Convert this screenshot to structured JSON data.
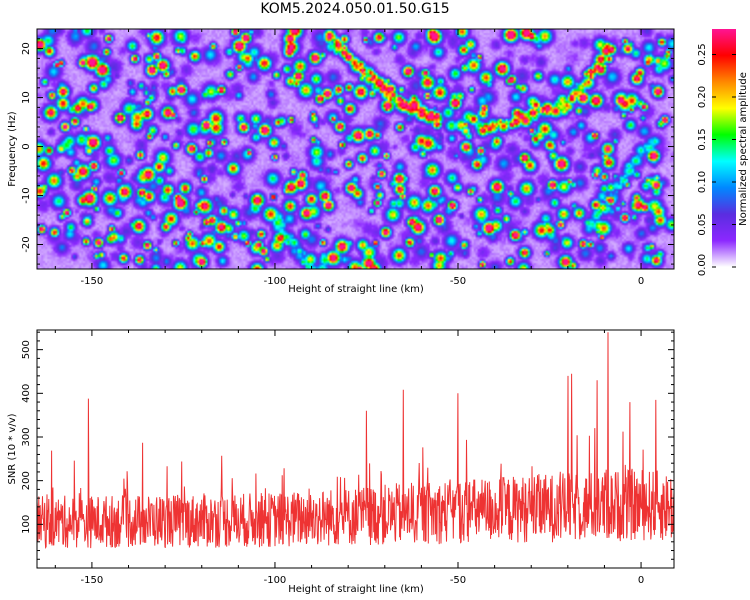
{
  "title": "KOM5.2024.050.01.50.G15",
  "chart_data": [
    {
      "type": "heatmap",
      "xlabel": "Height of straight line (km)",
      "ylabel": "Frequency (Hz)",
      "xlim": [
        -165,
        9
      ],
      "ylim": [
        -25,
        24
      ],
      "xticks": [
        -150,
        -100,
        -50,
        0
      ],
      "yticks": [
        -20,
        -10,
        0,
        10,
        20
      ],
      "colorbar": {
        "label": "Normalized spectral amplitude",
        "range": [
          0,
          0.28
        ],
        "ticks": [
          "0.00",
          "0.05",
          "0.10",
          "0.15",
          "0.20",
          "0.25"
        ],
        "colors": [
          "#ffffff",
          "#8c28ff",
          "#5a2de0",
          "#0088ff",
          "#00ffff",
          "#00ff00",
          "#ffff00",
          "#ff8800",
          "#ff0000",
          "#ff1493"
        ]
      },
      "features": [
        {
          "name": "",
          "x": [
            -86,
            -78,
            -72,
            -66,
            -60,
            -55
          ],
          "y": [
            23,
            17,
            13,
            9,
            7,
            6
          ],
          "value": 0.26
        },
        {
          "name": "",
          "x": [
            -44,
            -36,
            -28,
            -20,
            -14,
            -9
          ],
          "y": [
            4,
            5,
            7,
            9,
            14,
            21
          ],
          "value": 0.24
        },
        {
          "name": "",
          "x": [
            -100,
            -97,
            -93,
            -90
          ],
          "y": [
            -14,
            -18,
            -22,
            -25
          ],
          "value": 0.12
        },
        {
          "name": "",
          "x": [
            -15,
            -10,
            -5,
            0,
            5
          ],
          "y": [
            -16,
            -12,
            -6,
            -1,
            2
          ],
          "value": 0.12
        }
      ]
    },
    {
      "type": "line",
      "xlabel": "Height of straight line (km)",
      "ylabel": "SNR (10 * v/v)",
      "xlim": [
        -165,
        9
      ],
      "ylim": [
        0,
        545
      ],
      "xticks": [
        -150,
        -100,
        -50,
        0
      ],
      "yticks": [
        100,
        200,
        300,
        400,
        500
      ],
      "color": "#ee3333",
      "baseline_profile": {
        "x": [
          -165,
          -100,
          -50,
          0,
          9
        ],
        "mean": [
          105,
          110,
          130,
          145,
          140
        ]
      },
      "peaks": [
        {
          "x": -151,
          "y": 388
        },
        {
          "x": -75,
          "y": 360
        },
        {
          "x": -65,
          "y": 408
        },
        {
          "x": -50,
          "y": 400
        },
        {
          "x": -20,
          "y": 440
        },
        {
          "x": -19,
          "y": 445
        },
        {
          "x": -12,
          "y": 430
        },
        {
          "x": -9,
          "y": 540
        },
        {
          "x": -3,
          "y": 380
        },
        {
          "x": 4,
          "y": 385
        }
      ]
    }
  ]
}
